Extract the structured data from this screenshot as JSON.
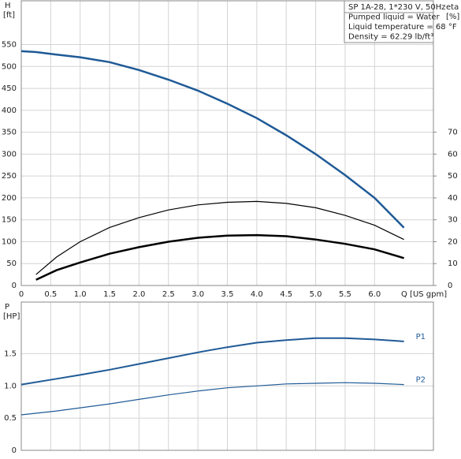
{
  "chart_data": [
    {
      "type": "line",
      "y_label": "H",
      "y_unit": "[ft]",
      "y2_label": "eta",
      "y2_unit": "[%]",
      "x_label": "Q [US gpm]",
      "info": [
        "SP 1A-28, 1*230 V, 50Hz",
        "Pumped liquid = Water",
        "Liquid temperature = 68 °F",
        "Density = 62.29 lb/ft³"
      ],
      "x": [
        0,
        0.25,
        0.6,
        1.0,
        1.5,
        2.0,
        2.5,
        3.0,
        3.5,
        4.0,
        4.5,
        5.0,
        5.5,
        6.0,
        6.5
      ],
      "xlim": [
        0,
        7
      ],
      "ylim": [
        0,
        650
      ],
      "y2lim": [
        0,
        130
      ],
      "grid": true,
      "xticks": [
        0,
        0.5,
        {
          "value": 1,
          "label": "1.0"
        },
        1.5,
        {
          "value": 2,
          "label": "2.0"
        },
        2.5,
        {
          "value": 3,
          "label": "3.0"
        },
        3.5,
        {
          "value": 4,
          "label": "4.0"
        },
        4.5,
        {
          "value": 5,
          "label": "5.0"
        },
        5.5,
        {
          "value": 6,
          "label": "6.0"
        }
      ],
      "yticks": [
        0,
        50,
        100,
        150,
        200,
        250,
        300,
        350,
        400,
        450,
        500,
        550
      ],
      "y2ticks": [
        0,
        10,
        20,
        30,
        40,
        50,
        60,
        70
      ],
      "series": [
        {
          "color": "#1f5a96",
          "values": [
            535,
            533,
            527,
            521,
            510,
            492,
            470,
            445,
            415,
            382,
            343,
            300,
            252,
            200,
            132
          ]
        },
        {
          "color": "#000000",
          "axis": "y2",
          "values": [
            null,
            5,
            13,
            20,
            26.5,
            31,
            34.5,
            36.8,
            38,
            38.4,
            37.5,
            35.5,
            32,
            27.5,
            21
          ]
        },
        {
          "color": "#000000",
          "axis": "y2",
          "values": [
            null,
            2.6,
            7,
            10.5,
            14.5,
            17.5,
            20,
            21.8,
            22.8,
            23,
            22.5,
            21,
            19,
            16.5,
            12.5
          ]
        }
      ]
    },
    {
      "type": "line",
      "y_label": "P",
      "y_unit": "[HP]",
      "x": [
        0,
        0.6,
        1.0,
        1.5,
        2.0,
        2.5,
        3.0,
        3.5,
        4.0,
        4.5,
        5.0,
        5.5,
        6.0,
        6.5
      ],
      "xlim": [
        0,
        7
      ],
      "ylim": [
        0,
        2.3
      ],
      "grid": true,
      "xticks": [
        0,
        0.5,
        1,
        1.5,
        2,
        2.5,
        3,
        3.5,
        4,
        4.5,
        5,
        5.5,
        6
      ],
      "yticks": [
        0,
        0.5,
        {
          "value": 1,
          "label": "1.0"
        },
        1.5
      ],
      "series": [
        {
          "name": "P1",
          "color": "#1f5a96",
          "values": [
            1.02,
            1.11,
            1.17,
            1.25,
            1.34,
            1.43,
            1.52,
            1.6,
            1.67,
            1.71,
            1.74,
            1.74,
            1.72,
            1.69
          ]
        },
        {
          "name": "P2",
          "color": "#1f5a96",
          "values": [
            0.55,
            0.61,
            0.66,
            0.72,
            0.79,
            0.86,
            0.92,
            0.97,
            1.0,
            1.03,
            1.04,
            1.05,
            1.04,
            1.02
          ]
        }
      ]
    }
  ]
}
